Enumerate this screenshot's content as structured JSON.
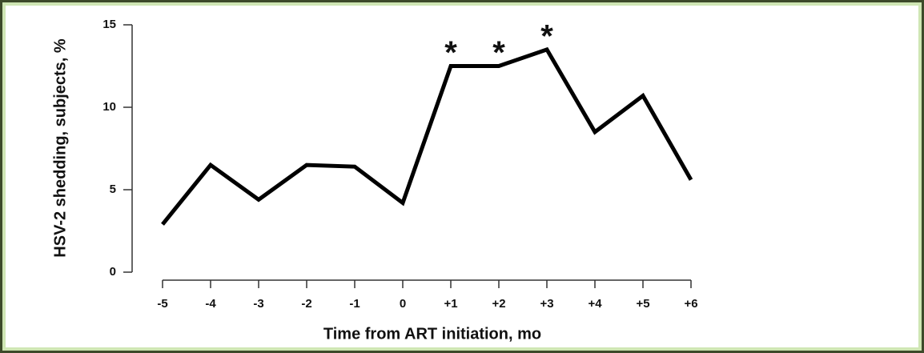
{
  "chart_data": {
    "type": "line",
    "y_label": "HSV-2 shedding, subjects, %",
    "x_label": "Time from ART initiation, mo",
    "categories": [
      "-5",
      "-4",
      "-3",
      "-2",
      "-1",
      "0",
      "+1",
      "+2",
      "+3",
      "+4",
      "+5",
      "+6"
    ],
    "values": [
      2.9,
      6.5,
      4.4,
      6.5,
      6.4,
      4.2,
      12.5,
      12.5,
      13.5,
      8.5,
      10.7,
      5.6
    ],
    "color": "#000000",
    "ylim": [
      0,
      15
    ],
    "yticks": [
      0,
      5,
      10,
      15
    ],
    "annotations": [
      {
        "text": "*",
        "x": "+1"
      },
      {
        "text": "*",
        "x": "+2"
      },
      {
        "text": "*",
        "x": "+3"
      }
    ]
  }
}
